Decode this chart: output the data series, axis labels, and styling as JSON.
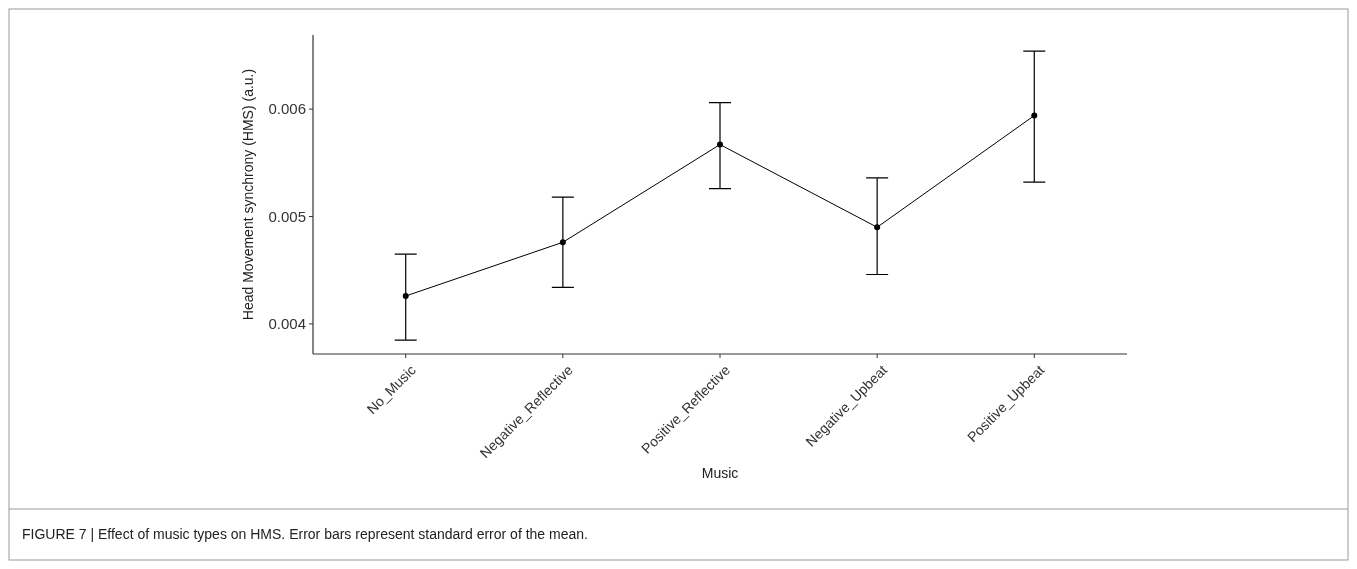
{
  "chart_data": {
    "type": "line",
    "xlabel": "Music",
    "ylabel": "Head Movement synchrony (HMS) (a.u.)",
    "categories": [
      "No_Music",
      "Negative_Reflective",
      "Positive_Reflective",
      "Negative_Upbeat",
      "Positive_Upbeat"
    ],
    "series": [
      {
        "color": "#000000",
        "values": [
          0.00426,
          0.00476,
          0.00567,
          0.0049,
          0.00594
        ],
        "errors": [
          [
            0.00385,
            0.00465
          ],
          [
            0.00434,
            0.00518
          ],
          [
            0.00526,
            0.00606
          ],
          [
            0.00446,
            0.00536
          ],
          [
            0.00532,
            0.00654
          ]
        ]
      }
    ],
    "ylim": [
      0.00372,
      0.00669
    ],
    "yticks": [
      0.004,
      0.005,
      0.006
    ],
    "marker": "circle",
    "line_style": "solid",
    "grid": false,
    "annotations": [
      "FIGURE 7 | Effect of music types on HMS. Error bars represent standard error of the mean."
    ]
  }
}
